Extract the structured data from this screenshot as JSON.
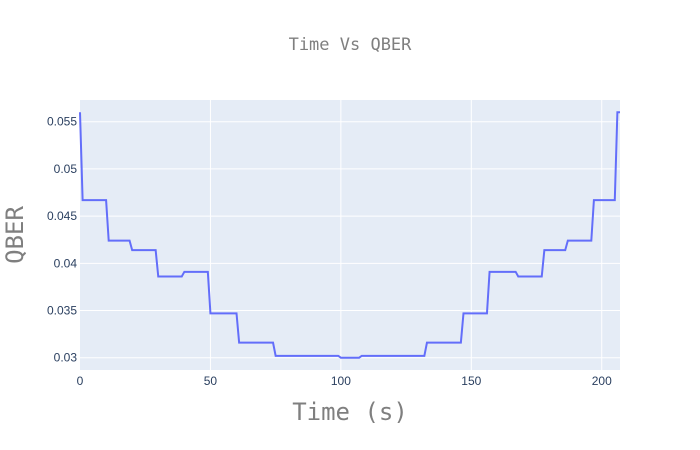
{
  "chart_data": {
    "type": "line",
    "title": "Time Vs QBER",
    "xlabel": "Time (s)",
    "ylabel": "QBER",
    "xlim": [
      0,
      207
    ],
    "ylim": [
      0.0287,
      0.0573
    ],
    "x_ticks": [
      0,
      50,
      100,
      150,
      200
    ],
    "x_tick_labels": [
      "0",
      "50",
      "100",
      "150",
      "200"
    ],
    "y_ticks": [
      0.03,
      0.035,
      0.04,
      0.045,
      0.05,
      0.055
    ],
    "y_tick_labels": [
      "0.03",
      "0.035",
      "0.04",
      "0.045",
      "0.05",
      "0.055"
    ],
    "grid": true,
    "legend": false,
    "colors": {
      "plot_bg": "#e5ecf6",
      "line": "#636efa",
      "text": "#7f7f7f",
      "tick_text": "#2a3f5f"
    },
    "series": [
      {
        "line_shape": "step",
        "x": [
          0,
          1,
          10,
          11,
          19,
          20,
          29,
          30,
          39,
          40,
          49,
          50,
          60,
          61,
          74,
          75,
          99,
          100,
          107,
          108,
          132,
          133,
          146,
          147,
          156,
          157,
          167,
          168,
          177,
          178,
          186,
          187,
          196,
          197,
          205,
          206,
          207
        ],
        "y": [
          0.056,
          0.0467,
          0.0467,
          0.0424,
          0.0424,
          0.0414,
          0.0414,
          0.0386,
          0.0386,
          0.0391,
          0.0391,
          0.0347,
          0.0347,
          0.0316,
          0.0316,
          0.0302,
          0.0302,
          0.03,
          0.03,
          0.0302,
          0.0302,
          0.0316,
          0.0316,
          0.0347,
          0.0347,
          0.0391,
          0.0391,
          0.0386,
          0.0386,
          0.0414,
          0.0414,
          0.0424,
          0.0424,
          0.0467,
          0.0467,
          0.056,
          0.056
        ]
      }
    ]
  }
}
